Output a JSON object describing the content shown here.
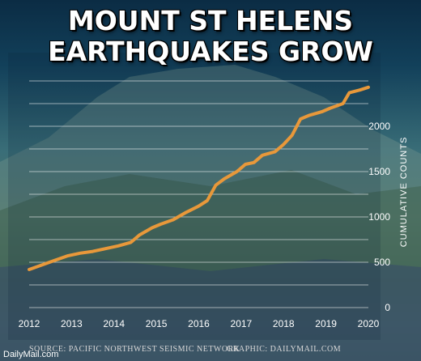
{
  "header": {
    "title_line1": "MOUNT ST HELENS",
    "title_line2": "EARTHQUAKES GROW"
  },
  "chart_data": {
    "type": "line",
    "title": "MOUNT ST HELENS EARTHQUAKES GROW",
    "xlabel": "",
    "ylabel": "CUMULATIVE COUNTS",
    "xlim": [
      2012,
      2020
    ],
    "ylim": [
      0,
      2500
    ],
    "x_ticks": [
      "2012",
      "2013",
      "2014",
      "2015",
      "2016",
      "2017",
      "2018",
      "2019",
      "2020"
    ],
    "y_ticks": [
      "0",
      "500",
      "1000",
      "1500",
      "2000"
    ],
    "grid": "horizontal",
    "line_color": "#e8983a",
    "series": [
      {
        "name": "",
        "x": [
          2012.0,
          2012.3,
          2012.6,
          2012.9,
          2013.2,
          2013.5,
          2013.8,
          2014.1,
          2014.4,
          2014.6,
          2014.9,
          2015.1,
          2015.4,
          2015.7,
          2016.0,
          2016.2,
          2016.4,
          2016.6,
          2016.9,
          2017.1,
          2017.3,
          2017.5,
          2017.8,
          2018.0,
          2018.2,
          2018.4,
          2018.6,
          2018.9,
          2019.1,
          2019.4,
          2019.55,
          2019.8,
          2020.0
        ],
        "y": [
          420,
          470,
          520,
          570,
          600,
          620,
          650,
          680,
          720,
          800,
          880,
          920,
          970,
          1050,
          1120,
          1180,
          1350,
          1420,
          1500,
          1580,
          1600,
          1680,
          1720,
          1800,
          1900,
          2080,
          2120,
          2160,
          2200,
          2250,
          2370,
          2400,
          2430
        ]
      }
    ]
  },
  "footer": {
    "brand": "DailyMail.com",
    "source": "SOURCE:  PACIFIC NORTHWEST SEISMIC NETWORK",
    "graphic": "GRAPHIC: DAILYMAIL.COM"
  }
}
